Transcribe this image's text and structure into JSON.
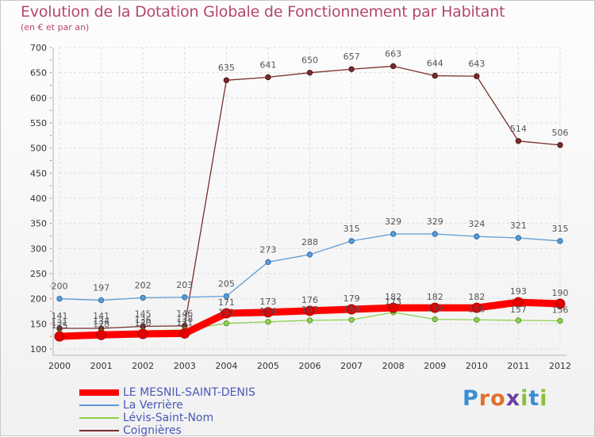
{
  "title": "Evolution de la Dotation Globale de Fonctionnement par Habitant",
  "subtitle": "(en € et par an)",
  "logo": {
    "text": "Proxiti"
  },
  "chart_data": {
    "type": "line",
    "x": [
      "2000",
      "2001",
      "2002",
      "2003",
      "2004",
      "2005",
      "2006",
      "2007",
      "2008",
      "2009",
      "2010",
      "2011",
      "2012"
    ],
    "yticks": [
      "100",
      "150",
      "200",
      "250",
      "300",
      "350",
      "400",
      "450",
      "500",
      "550",
      "600",
      "650",
      "700"
    ],
    "ylim": [
      100,
      700
    ],
    "grid": true,
    "legend_position": "bottom-left",
    "series": [
      {
        "name": "LE MESNIL-SAINT-DENIS",
        "color": "#ff0000",
        "values": [
          125,
          128,
          130,
          131,
          171,
          173,
          176,
          179,
          182,
          182,
          182,
          193,
          190
        ],
        "labels": [
          "125",
          "128",
          "130",
          "131",
          "171",
          "173",
          "176",
          "179",
          "182",
          "182",
          "182",
          "193",
          "190"
        ]
      },
      {
        "name": "La Verrière",
        "color": "#5b9bd5",
        "values": [
          200,
          197,
          202,
          203,
          205,
          273,
          288,
          315,
          329,
          329,
          324,
          321,
          315
        ],
        "labels": [
          "200",
          "197",
          "202",
          "203",
          "205",
          "273",
          "288",
          "315",
          "329",
          "329",
          "324",
          "321",
          "315"
        ]
      },
      {
        "name": "Lévis-Saint-Nom",
        "color": "#8fd14f",
        "values": [
          131,
          134,
          136,
          138,
          151,
          154,
          157,
          158,
          173,
          159,
          158,
          157,
          156
        ],
        "labels": [
          "131",
          "134",
          "136",
          "138",
          "151",
          "154",
          "157",
          "158",
          "173",
          "159",
          "158",
          "157",
          "156"
        ]
      },
      {
        "name": "Coignières",
        "color": "#7b2c2c",
        "values": [
          141,
          141,
          145,
          146,
          635,
          641,
          650,
          657,
          663,
          644,
          643,
          514,
          506
        ],
        "labels": [
          "141",
          "141",
          "145",
          "146",
          "635",
          "641",
          "650",
          "657",
          "663",
          "644",
          "643",
          "514",
          "506"
        ]
      }
    ]
  }
}
